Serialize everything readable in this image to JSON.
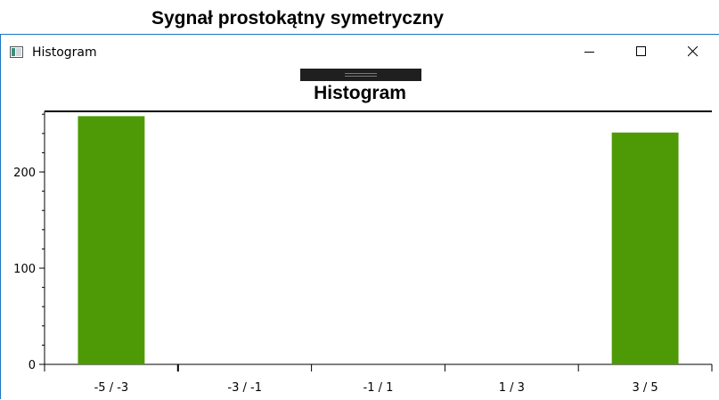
{
  "background_heading": "Sygnał prostokątny symetryczny",
  "window": {
    "title": "Histogram",
    "icon": "app-window-icon",
    "controls": [
      "minimize-icon",
      "maximize-icon",
      "close-icon"
    ]
  },
  "colors": {
    "bar": "#4e9a06",
    "window_border": "#1e76c4"
  },
  "chart_data": {
    "type": "bar",
    "title": "Histogram",
    "categories": [
      "-5 / -3",
      "-3 / -1",
      "-1 / 1",
      "1 / 3",
      "3 / 5"
    ],
    "values": [
      258,
      0,
      0,
      0,
      241
    ],
    "ylim": [
      0,
      263
    ],
    "yticks": [
      0,
      100,
      200
    ],
    "xlabel": "",
    "ylabel": "",
    "grid": false
  }
}
